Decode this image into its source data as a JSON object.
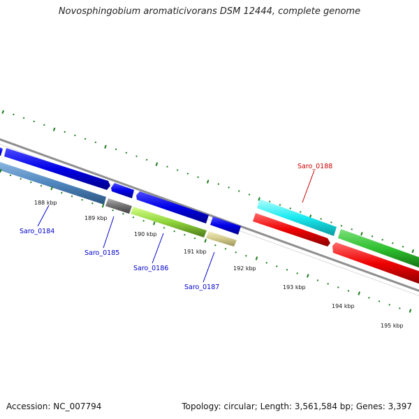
{
  "title": "Novosphingobium aromaticivorans DSM 12444, complete genome",
  "footer": {
    "accession": "Accession: NC_007794",
    "summary": "Topology: circular; Length: 3,561,584 bp; Genes: 3,397"
  },
  "colors": {
    "backbone": "#8f8f8f",
    "ticks": "#1a7a1a",
    "label_blue": "#0000cc",
    "label_red": "#cc0000"
  },
  "scale_labels": [
    {
      "kb": 188,
      "text": "188 kbp"
    },
    {
      "kb": 189,
      "text": "189 kbp"
    },
    {
      "kb": 190,
      "text": "190 kbp"
    },
    {
      "kb": 191,
      "text": "191 kbp"
    },
    {
      "kb": 192,
      "text": "192 kbp"
    },
    {
      "kb": 193,
      "text": "193 kbp"
    },
    {
      "kb": 194,
      "text": "194 kbp"
    },
    {
      "kb": 195,
      "text": "195 kbp"
    }
  ],
  "genes": [
    {
      "id": "Saro_0184",
      "label": "Saro_0184",
      "color": "#4f86be",
      "label_color": "#0000cc"
    },
    {
      "id": "Saro_0185",
      "label": "Saro_0185",
      "color": "#707070",
      "label_color": "#0000cc"
    },
    {
      "id": "Saro_0186",
      "label": "Saro_0186",
      "color": "#8fd43a",
      "label_color": "#0000cc"
    },
    {
      "id": "Saro_0187",
      "label": "Saro_0187",
      "color": "#d2c98a",
      "label_color": "#0000cc"
    },
    {
      "id": "Saro_0188",
      "label": "Saro_0188",
      "color": "#14e6ea",
      "label_color": "#cc0000"
    }
  ]
}
